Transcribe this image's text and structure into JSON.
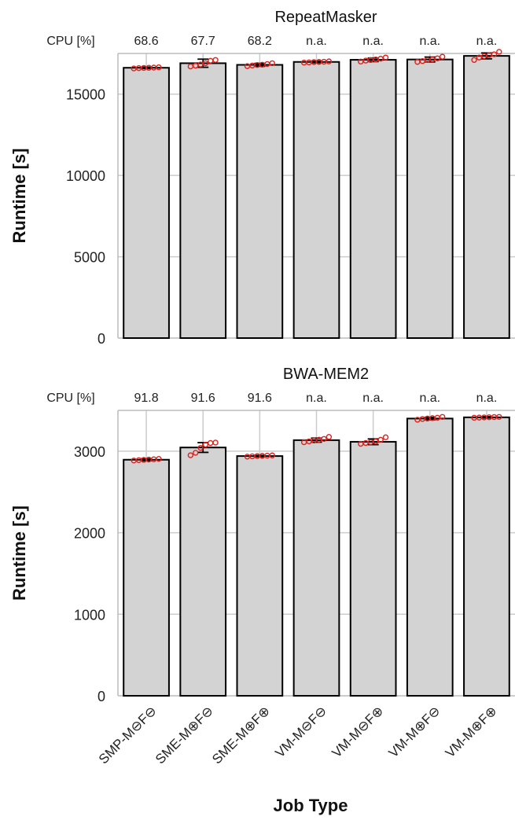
{
  "chart_data": [
    {
      "type": "bar",
      "title": "RepeatMasker",
      "ylabel": "Runtime [s]",
      "xlabel": "",
      "ylim": [
        0,
        17500
      ],
      "yticks": [
        0,
        5000,
        10000,
        15000
      ],
      "grid": true,
      "cpu_label": "CPU [%]",
      "cpu_values": [
        "68.6",
        "67.7",
        "68.2",
        "n.a.",
        "n.a.",
        "n.a.",
        "n.a."
      ],
      "categories": [
        "SMP-M⊖F⊖",
        "SME-M⊕F⊖",
        "SME-M⊕F⊕",
        "VM-M⊖F⊖",
        "VM-M⊖F⊕",
        "VM-M⊕F⊖",
        "VM-M⊕F⊕"
      ],
      "values": [
        16620,
        16900,
        16800,
        16980,
        17110,
        17130,
        17350
      ],
      "errors": [
        40,
        250,
        90,
        50,
        110,
        150,
        180
      ],
      "points": [
        [
          16580,
          16600,
          16610,
          16620,
          16630,
          16650
        ],
        [
          16700,
          16750,
          16820,
          16900,
          17050,
          17100
        ],
        [
          16720,
          16760,
          16790,
          16810,
          16850,
          16900
        ],
        [
          16940,
          16950,
          16970,
          16980,
          16990,
          17010
        ],
        [
          17000,
          17060,
          17100,
          17130,
          17180,
          17250
        ],
        [
          16980,
          17030,
          17100,
          17140,
          17200,
          17300
        ],
        [
          17100,
          17250,
          17330,
          17400,
          17450,
          17600
        ]
      ]
    },
    {
      "type": "bar",
      "title": "BWA-MEM2",
      "ylabel": "Runtime [s]",
      "xlabel": "Job Type",
      "ylim": [
        0,
        3500
      ],
      "yticks": [
        0,
        1000,
        2000,
        3000
      ],
      "grid": true,
      "cpu_label": "CPU [%]",
      "cpu_values": [
        "91.8",
        "91.6",
        "91.6",
        "n.a.",
        "n.a.",
        "n.a.",
        "n.a."
      ],
      "categories": [
        "SMP-M⊖F⊖",
        "SME-M⊕F⊖",
        "SME-M⊕F⊕",
        "VM-M⊖F⊖",
        "VM-M⊖F⊕",
        "VM-M⊕F⊖",
        "VM-M⊕F⊕"
      ],
      "values": [
        2895,
        3045,
        2940,
        3135,
        3115,
        3400,
        3415
      ],
      "errors": [
        12,
        60,
        8,
        25,
        35,
        15,
        8
      ],
      "points": [
        [
          2885,
          2890,
          2893,
          2897,
          2900,
          2905
        ],
        [
          2950,
          2980,
          3040,
          3080,
          3100,
          3105
        ],
        [
          2933,
          2937,
          2940,
          2942,
          2945,
          2948
        ],
        [
          3110,
          3120,
          3130,
          3140,
          3150,
          3175
        ],
        [
          3090,
          3100,
          3110,
          3120,
          3140,
          3170
        ],
        [
          3385,
          3395,
          3400,
          3405,
          3410,
          3420
        ],
        [
          3410,
          3412,
          3414,
          3416,
          3418,
          3420
        ]
      ]
    }
  ],
  "colors": {
    "bar_fill": "#d3d3d3",
    "bar_edge": "#000000",
    "point_edge": "#e0201b",
    "grid": "#cccccc",
    "axis_frame": "#bbbbbb"
  }
}
